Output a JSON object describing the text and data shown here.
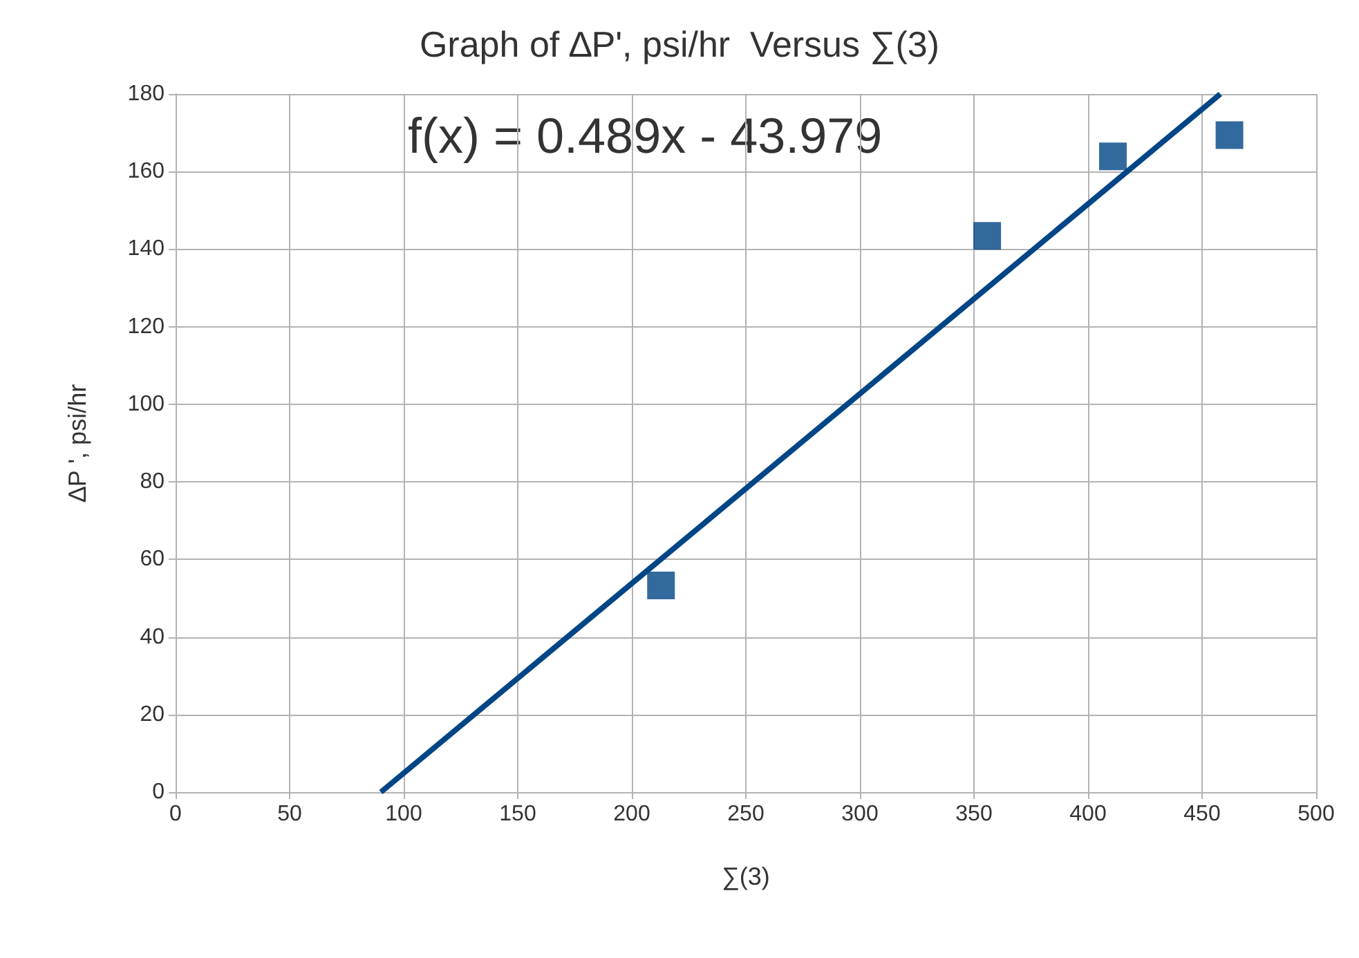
{
  "chart_data": {
    "type": "scatter",
    "title": "Graph of ∆P', psi/hr  Versus ∑(3)",
    "xlabel": "∑(3)",
    "ylabel": "∆P ', psi/hr",
    "annotations": [
      "f(x) = 0.489x - 43.979"
    ],
    "series": [
      {
        "color": "#004586",
        "marker": "square",
        "x": [
          212.8,
          355.8,
          410.9,
          462
        ],
        "values": [
          53.3,
          143.4,
          163.9,
          169.4
        ]
      },
      {
        "type": "line",
        "color": "#004586",
        "marker": "none",
        "x": [
          90,
          458
        ],
        "values": [
          0,
          180
        ]
      }
    ],
    "xlim": [
      0,
      500
    ],
    "xticks": [
      0,
      50,
      100,
      150,
      200,
      250,
      300,
      350,
      400,
      450,
      500
    ],
    "ylim": [
      0,
      180
    ],
    "yticks": [
      0,
      20,
      40,
      60,
      80,
      100,
      120,
      140,
      160,
      180
    ],
    "grid": true
  }
}
